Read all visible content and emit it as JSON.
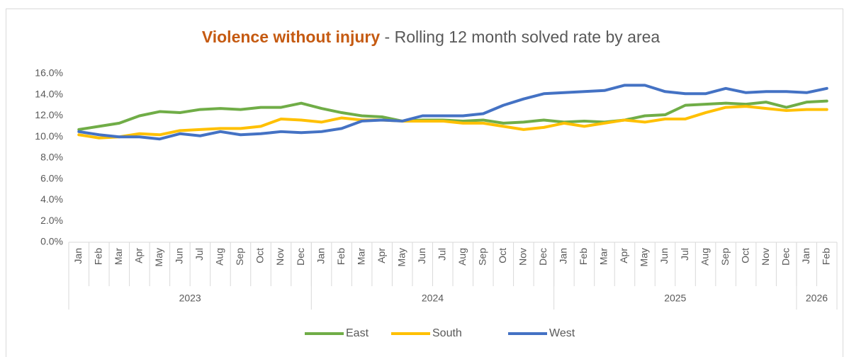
{
  "chart_data": {
    "type": "line",
    "title": "Violence without injury",
    "subtitle": " - Rolling 12 month solved rate by area",
    "categories": [
      "Jan",
      "Feb",
      "Mar",
      "Apr",
      "May",
      "Jun",
      "Jul",
      "Aug",
      "Sep",
      "Oct",
      "Nov",
      "Dec",
      "Jan",
      "Feb",
      "Mar",
      "Apr",
      "May",
      "Jun",
      "Jul",
      "Aug",
      "Sep",
      "Oct",
      "Nov",
      "Dec",
      "Jan",
      "Feb",
      "Mar",
      "Apr",
      "May",
      "Jun",
      "Jul",
      "Aug",
      "Sep",
      "Oct",
      "Nov",
      "Dec",
      "Jan",
      "Feb"
    ],
    "category_groups": [
      {
        "label": "2023",
        "count": 12
      },
      {
        "label": "2024",
        "count": 12
      },
      {
        "label": "2025",
        "count": 12
      },
      {
        "label": "2026",
        "count": 2
      }
    ],
    "series": [
      {
        "name": "East",
        "color": "#70ad47",
        "values": [
          10.7,
          11.0,
          11.3,
          12.0,
          12.4,
          12.3,
          12.6,
          12.7,
          12.6,
          12.8,
          12.8,
          13.2,
          12.7,
          12.3,
          12.0,
          11.9,
          11.5,
          11.6,
          11.6,
          11.5,
          11.6,
          11.3,
          11.4,
          11.6,
          11.4,
          11.5,
          11.4,
          11.6,
          12.0,
          12.1,
          13.0,
          13.1,
          13.2,
          13.1,
          13.3,
          12.8,
          13.3,
          13.4
        ]
      },
      {
        "name": "South",
        "color": "#ffc000",
        "values": [
          10.2,
          9.9,
          10.0,
          10.3,
          10.2,
          10.6,
          10.7,
          10.8,
          10.8,
          11.0,
          11.7,
          11.6,
          11.4,
          11.8,
          11.6,
          11.6,
          11.5,
          11.5,
          11.5,
          11.3,
          11.3,
          11.0,
          10.7,
          10.9,
          11.3,
          11.0,
          11.3,
          11.6,
          11.4,
          11.7,
          11.7,
          12.3,
          12.8,
          12.9,
          12.7,
          12.5,
          12.6,
          12.6
        ]
      },
      {
        "name": "West",
        "color": "#4472c4",
        "values": [
          10.5,
          10.2,
          10.0,
          10.0,
          9.8,
          10.3,
          10.1,
          10.5,
          10.2,
          10.3,
          10.5,
          10.4,
          10.5,
          10.8,
          11.5,
          11.6,
          11.5,
          12.0,
          12.0,
          12.0,
          12.2,
          13.0,
          13.6,
          14.1,
          14.2,
          14.3,
          14.4,
          14.9,
          14.9,
          14.3,
          14.1,
          14.1,
          14.6,
          14.2,
          14.3,
          14.3,
          14.2,
          14.6
        ]
      }
    ],
    "ylim": [
      0,
      16
    ],
    "yticks": [
      {
        "value": 0,
        "label": "0.0%"
      },
      {
        "value": 2,
        "label": "2.0%"
      },
      {
        "value": 4,
        "label": "4.0%"
      },
      {
        "value": 6,
        "label": "6.0%"
      },
      {
        "value": 8,
        "label": "8.0%"
      },
      {
        "value": 10,
        "label": "10.0%"
      },
      {
        "value": 12,
        "label": "12.0%"
      },
      {
        "value": 14,
        "label": "14.0%"
      },
      {
        "value": 16,
        "label": "16.0%"
      }
    ],
    "grid": false,
    "legend": "bottom"
  }
}
